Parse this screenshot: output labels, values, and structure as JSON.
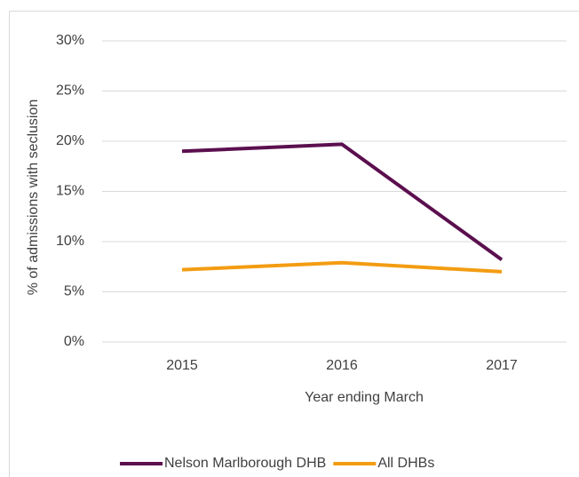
{
  "chart_data": {
    "type": "line",
    "y_label": "% of admissions with seclusion",
    "x_label": "Year ending March",
    "categories": [
      "2015",
      "2016",
      "2017"
    ],
    "series": [
      {
        "name": "Nelson Marlborough DHB",
        "color": "#5b0f4e",
        "values": [
          19.0,
          19.7,
          8.2
        ]
      },
      {
        "name": "All DHBs",
        "color": "#f39c12",
        "values": [
          7.2,
          7.9,
          7.0
        ]
      }
    ],
    "ylim": [
      0,
      30
    ],
    "yticks": [
      {
        "value": 0,
        "label": "0%"
      },
      {
        "value": 5,
        "label": "5%"
      },
      {
        "value": 10,
        "label": "10%"
      },
      {
        "value": 15,
        "label": "15%"
      },
      {
        "value": 20,
        "label": "20%"
      },
      {
        "value": 25,
        "label": "25%"
      },
      {
        "value": 30,
        "label": "30%"
      }
    ],
    "grid": true,
    "legend": "bottom"
  }
}
